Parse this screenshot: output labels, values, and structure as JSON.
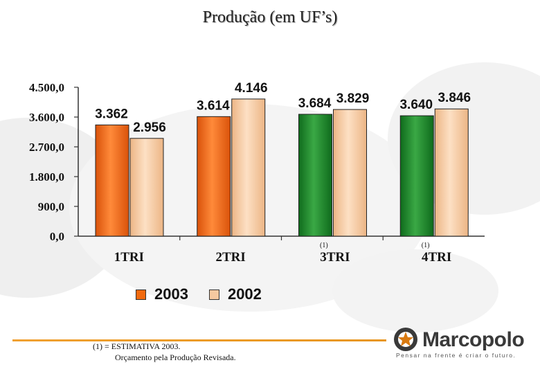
{
  "title": "Produção  (em UF’s)",
  "chart_data": {
    "type": "bar",
    "categories": [
      "1TRI",
      "2TRI",
      "3TRI",
      "4TRI"
    ],
    "category_notes": [
      "",
      "",
      "(1)",
      "(1)"
    ],
    "series": [
      {
        "name": "2003",
        "values": [
          3362,
          3614,
          3684,
          3640
        ],
        "labels": [
          "3.362",
          "3.614",
          "3.684",
          "3.640"
        ]
      },
      {
        "name": "2002",
        "values": [
          2956,
          4146,
          3829,
          3846
        ],
        "labels": [
          "2.956",
          "4.146",
          "3.829",
          "3.846"
        ]
      }
    ],
    "ylim": [
      0,
      4500
    ],
    "yticks": [
      0,
      900,
      1800,
      2700,
      3600,
      4500
    ],
    "ytick_labels": [
      "0,0",
      "900,0",
      "1.800,0",
      "2.700,0",
      "3.600,0",
      "4.500,0"
    ],
    "colors": {
      "2003_actual": "#f26a0f",
      "2003_estimate": "#1f8a2a",
      "2002": "#f5c9a0"
    },
    "legend_position": "bottom",
    "grid": false
  },
  "legend": [
    {
      "label": "2003",
      "color": "#f26a0f"
    },
    {
      "label": "2002",
      "color": "#f5c9a0"
    }
  ],
  "footnote": {
    "line1": "(1)  = ESTIMATIVA 2003.",
    "line2": "Orçamento pela Produção Revisada."
  },
  "logo": {
    "name": "Marcopolo",
    "tagline": "Pensar na frente é criar o futuro.",
    "icon": "marcopolo-star-icon"
  }
}
